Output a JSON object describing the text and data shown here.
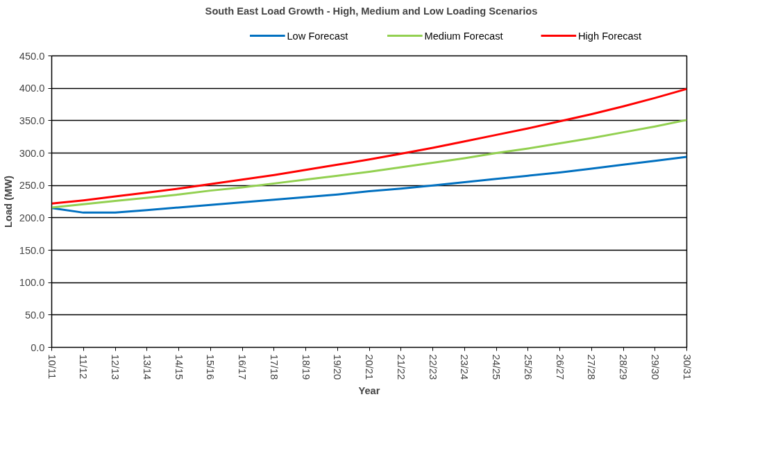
{
  "chart_data": {
    "type": "line",
    "title": "South East Load Growth - High, Medium and Low Loading Scenarios",
    "xlabel": "Year",
    "ylabel": "Load (MW)",
    "categories": [
      "10/11",
      "11/12",
      "12/13",
      "13/14",
      "14/15",
      "15/16",
      "16/17",
      "17/18",
      "18/19",
      "19/20",
      "20/21",
      "21/22",
      "22/23",
      "23/24",
      "24/25",
      "25/26",
      "26/27",
      "27/28",
      "28/29",
      "29/30",
      "30/31"
    ],
    "series": [
      {
        "name": "Low Forecast",
        "color": "#0070c0",
        "values": [
          215,
          208,
          208,
          212,
          216,
          220,
          224,
          228,
          232,
          236,
          241,
          245,
          250,
          255,
          260,
          265,
          270,
          276,
          282,
          288,
          294
        ]
      },
      {
        "name": "Medium Forecast",
        "color": "#92d050",
        "values": [
          216,
          221,
          226,
          231,
          236,
          242,
          247,
          253,
          259,
          265,
          271,
          278,
          285,
          292,
          300,
          307,
          315,
          323,
          332,
          341,
          351
        ]
      },
      {
        "name": "High Forecast",
        "color": "#ff0000",
        "values": [
          222,
          227,
          233,
          239,
          245,
          252,
          259,
          266,
          274,
          282,
          290,
          299,
          308,
          318,
          328,
          338,
          349,
          360,
          372,
          385,
          399
        ]
      }
    ],
    "ylim": [
      0,
      450
    ],
    "yticks": [
      {
        "value": 0,
        "label": "0.0"
      },
      {
        "value": 50,
        "label": "50.0"
      },
      {
        "value": 100,
        "label": "100.0"
      },
      {
        "value": 150,
        "label": "150.0"
      },
      {
        "value": 200,
        "label": "200.0"
      },
      {
        "value": 250,
        "label": "250.0"
      },
      {
        "value": 300,
        "label": "300.0"
      },
      {
        "value": 350,
        "label": "350.0"
      },
      {
        "value": 400,
        "label": "400.0"
      },
      {
        "value": 450,
        "label": "450.0"
      }
    ],
    "grid": "y",
    "legend": "top",
    "marker": "none",
    "line_style": "solid"
  }
}
